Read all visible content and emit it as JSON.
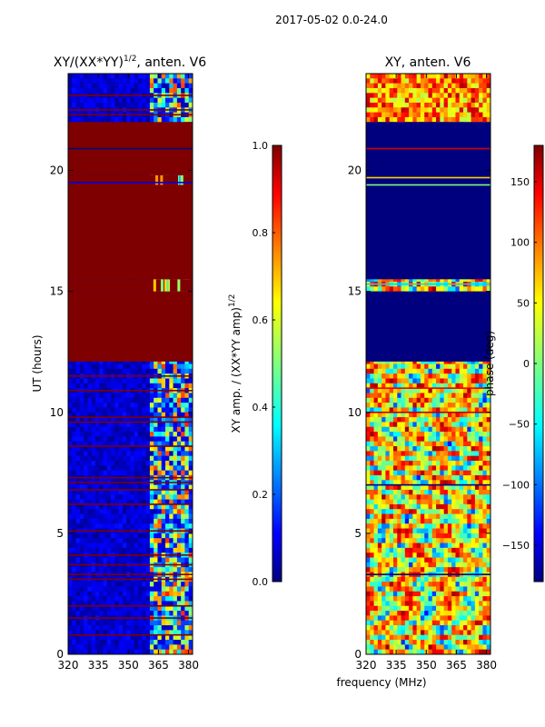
{
  "chart_data": {
    "suptitle": "2017-05-02 0.0-24.0",
    "colors": {
      "jet": [
        "#00007f",
        "#0000ff",
        "#007fff",
        "#00ffff",
        "#7fff7f",
        "#ffff00",
        "#ff7f00",
        "#ff0000",
        "#7f0000"
      ]
    },
    "panels": [
      {
        "id": "amp",
        "type": "heatmap",
        "title_main": "XY/(XX*YY)",
        "title_sup": "1/2",
        "title_tail": ", anten. V6",
        "ylabel": "UT (hours)",
        "xlabel": "",
        "xlim": [
          320,
          382
        ],
        "ylim": [
          0,
          24
        ],
        "xticks": [
          320,
          335,
          350,
          365,
          380
        ],
        "yticks": [
          0,
          5,
          10,
          15,
          20
        ],
        "bands": [
          {
            "y0": 12.1,
            "y1": 15.0,
            "mode": "solid",
            "value": 1.0
          },
          {
            "y0": 15.0,
            "y1": 15.5,
            "mode": "rightspeck",
            "value": 1.0
          },
          {
            "y0": 15.5,
            "y1": 19.4,
            "mode": "solid",
            "value": 1.0
          },
          {
            "y0": 19.4,
            "y1": 19.8,
            "mode": "rightspeck",
            "value": 1.0
          },
          {
            "y0": 19.8,
            "y1": 22.0,
            "mode": "solid",
            "value": 1.0
          }
        ],
        "lines": [
          {
            "y": 20.9,
            "value": 0.0
          },
          {
            "y": 19.5,
            "value": 0.1
          },
          {
            "y": 22.5,
            "value": 1.0
          },
          {
            "y": 22.3,
            "value": 1.0
          },
          {
            "y": 23.1,
            "value": 1.0
          },
          {
            "y": 11.5,
            "value": 1.0
          },
          {
            "y": 10.9,
            "value": 1.0
          },
          {
            "y": 9.8,
            "value": 1.0
          },
          {
            "y": 9.6,
            "value": 1.0
          },
          {
            "y": 8.6,
            "value": 1.0
          },
          {
            "y": 7.3,
            "value": 1.0
          },
          {
            "y": 7.1,
            "value": 1.0
          },
          {
            "y": 6.8,
            "value": 1.0
          },
          {
            "y": 6.2,
            "value": 1.0
          },
          {
            "y": 5.1,
            "value": 1.0
          },
          {
            "y": 4.1,
            "value": 1.0
          },
          {
            "y": 3.7,
            "value": 1.0
          },
          {
            "y": 3.3,
            "value": 1.0
          },
          {
            "y": 3.1,
            "value": 1.0
          },
          {
            "y": 2.0,
            "value": 1.0
          },
          {
            "y": 1.5,
            "value": 1.0
          },
          {
            "y": 0.8,
            "value": 1.0
          }
        ],
        "colorbar": {
          "label_main": "XY amp. / (XX*YY amp)",
          "label_sup": "1/2",
          "vmin": 0.0,
          "vmax": 1.0,
          "ticks": [
            "0.0",
            "0.2",
            "0.4",
            "0.6",
            "0.8",
            "1.0"
          ]
        }
      },
      {
        "id": "phase",
        "type": "heatmap",
        "title_main": "XY, anten. V6",
        "ylabel": "",
        "xlabel": "frequency (MHz)",
        "xlim": [
          320,
          382
        ],
        "ylim": [
          0,
          24
        ],
        "xticks": [
          320,
          335,
          350,
          365,
          380
        ],
        "yticks": [
          0,
          5,
          10,
          15,
          20
        ],
        "bands": [
          {
            "y0": 12.1,
            "y1": 15.0,
            "mode": "solid",
            "value": -180
          },
          {
            "y0": 15.5,
            "y1": 22.0,
            "mode": "solid",
            "value": -180
          }
        ],
        "lines": [
          {
            "y": 20.9,
            "value": 150
          },
          {
            "y": 19.4,
            "value": 0
          },
          {
            "y": 19.7,
            "value": 60
          },
          {
            "y": 15.3,
            "value": -60
          },
          {
            "y": 11.0,
            "value": 140
          },
          {
            "y": 10.0,
            "value": 160
          },
          {
            "y": 3.3,
            "value": -180
          },
          {
            "y": 7.0,
            "value": -180
          }
        ],
        "colorbar": {
          "label_main": "phase (deg)",
          "vmin": -180,
          "vmax": 180,
          "ticks": [
            "150",
            "100",
            "50",
            "0",
            "−50",
            "−100",
            "−150"
          ],
          "tick_values": [
            150,
            100,
            50,
            0,
            -50,
            -100,
            -150
          ]
        }
      }
    ]
  }
}
